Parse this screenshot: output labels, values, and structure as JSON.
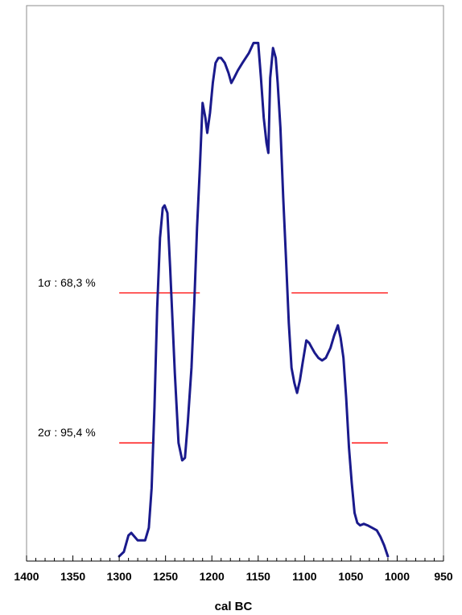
{
  "chart_data": {
    "type": "line",
    "title": "",
    "xlabel": "cal BC",
    "ylabel": "",
    "xlim": [
      1400,
      950
    ],
    "x_reversed": true,
    "x_ticks": [
      1400,
      1350,
      1300,
      1250,
      1200,
      1150,
      1100,
      1050,
      1000,
      950
    ],
    "x_tick_labels": [
      "1400",
      "1350",
      "1300",
      "1250",
      "1200",
      "1150",
      "1100",
      "1050",
      "1000",
      "950"
    ],
    "minor_tick_step": 10,
    "grid": false,
    "series": [
      {
        "color": "#1a1a8c",
        "x": [
          1300,
          1295,
          1290,
          1287,
          1280,
          1272,
          1268,
          1265,
          1262,
          1259,
          1256,
          1253,
          1251,
          1248,
          1245,
          1240,
          1236,
          1232,
          1229,
          1226,
          1222,
          1219,
          1216,
          1213,
          1210,
          1207,
          1205,
          1202,
          1199,
          1196,
          1193,
          1190,
          1186,
          1182,
          1179,
          1176,
          1172,
          1167,
          1160,
          1155,
          1150,
          1147,
          1144,
          1141,
          1139,
          1137,
          1134,
          1131,
          1129,
          1126,
          1123,
          1120,
          1117,
          1114,
          1111,
          1108,
          1105,
          1102,
          1098,
          1095,
          1092,
          1089,
          1085,
          1081,
          1077,
          1072,
          1068,
          1064,
          1061,
          1058,
          1055,
          1052,
          1049,
          1046,
          1043,
          1040,
          1036,
          1032,
          1027,
          1022,
          1018,
          1014,
          1010
        ],
        "y": [
          0.003,
          0.012,
          0.045,
          0.05,
          0.035,
          0.035,
          0.06,
          0.14,
          0.3,
          0.5,
          0.64,
          0.7,
          0.705,
          0.69,
          0.58,
          0.37,
          0.23,
          0.195,
          0.2,
          0.27,
          0.38,
          0.51,
          0.66,
          0.78,
          0.91,
          0.88,
          0.85,
          0.89,
          0.95,
          0.99,
          1.0,
          1.0,
          0.99,
          0.97,
          0.95,
          0.96,
          0.975,
          0.99,
          1.01,
          1.03,
          1.03,
          0.96,
          0.88,
          0.83,
          0.81,
          0.96,
          1.02,
          1.0,
          0.95,
          0.86,
          0.72,
          0.6,
          0.47,
          0.38,
          0.35,
          0.33,
          0.355,
          0.39,
          0.435,
          0.43,
          0.42,
          0.41,
          0.4,
          0.395,
          0.4,
          0.42,
          0.445,
          0.465,
          0.44,
          0.4,
          0.32,
          0.22,
          0.15,
          0.09,
          0.07,
          0.065,
          0.068,
          0.065,
          0.06,
          0.055,
          0.042,
          0.025,
          0.003
        ]
      }
    ],
    "annotations": [
      {
        "label": "1σ : 68,3 %",
        "color": "#ff0000",
        "y": 0.53,
        "segments": [
          [
            1300,
            1213
          ],
          [
            1114,
            1010
          ]
        ]
      },
      {
        "label": "2σ : 95,4 %",
        "color": "#ff0000",
        "y": 0.23,
        "segments": [
          [
            1300,
            1262
          ],
          [
            1049,
            1010
          ]
        ]
      }
    ]
  }
}
